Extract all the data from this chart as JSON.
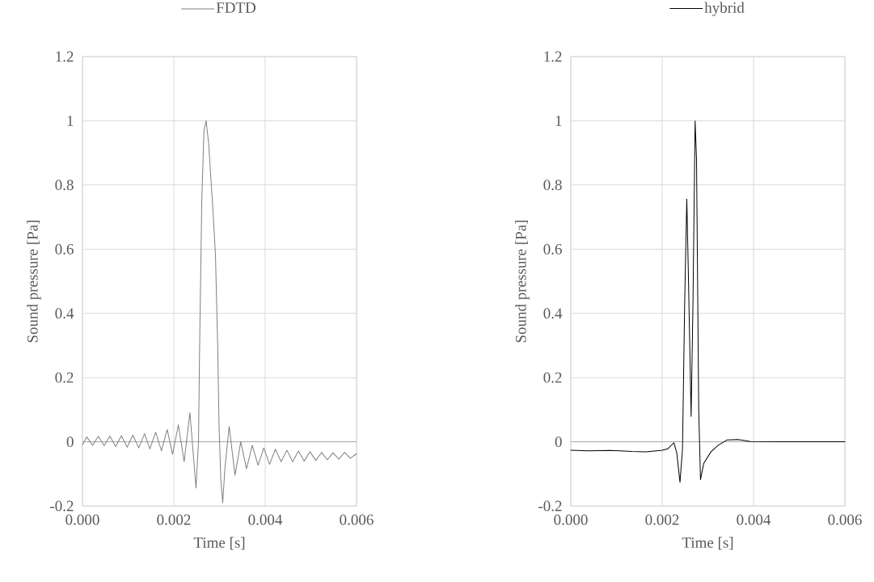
{
  "chart_data": [
    {
      "type": "line",
      "xlabel": "Time [s]",
      "ylabel": "Sound pressure [Pa]",
      "xlim": [
        0,
        0.006
      ],
      "ylim": [
        -0.2,
        1.2
      ],
      "xticks": [
        {
          "value": 0,
          "label": "0.000"
        },
        {
          "value": 0.002,
          "label": "0.002"
        },
        {
          "value": 0.004,
          "label": "0.004"
        },
        {
          "value": 0.006,
          "label": "0.006"
        }
      ],
      "yticks": [
        -0.2,
        0,
        0.2,
        0.4,
        0.6,
        0.8,
        1,
        1.2
      ],
      "grid": true,
      "legend": "top",
      "line_style": "solid",
      "marker": "none",
      "x": [
        0,
        9.5e-05,
        0.000221,
        0.000347,
        0.000474,
        0.0006,
        0.000726,
        0.000852,
        0.000979,
        0.001105,
        0.001231,
        0.001358,
        0.001476,
        0.001602,
        0.001729,
        0.001855,
        0.001973,
        0.002099,
        0.002226,
        0.002352,
        0.002486,
        0.00254,
        0.002565,
        0.002612,
        0.00266,
        0.002707,
        0.002762,
        0.002857,
        0.002912,
        0.00296,
        0.00299,
        0.00303,
        0.00307,
        0.00312,
        0.003212,
        0.003339,
        0.003465,
        0.003591,
        0.003717,
        0.003844,
        0.00397,
        0.004096,
        0.004223,
        0.004349,
        0.004475,
        0.004601,
        0.004728,
        0.004854,
        0.00498,
        0.005107,
        0.005233,
        0.005359,
        0.005485,
        0.005612,
        0.005738,
        0.005864,
        0.006
      ],
      "series": [
        {
          "name": "FDTD",
          "color": "#7f7f7f",
          "values": [
            -0.009,
            0.015,
            -0.011,
            0.017,
            -0.012,
            0.018,
            -0.015,
            0.019,
            -0.017,
            0.021,
            -0.019,
            0.025,
            -0.022,
            0.03,
            -0.028,
            0.038,
            -0.039,
            0.053,
            -0.062,
            0.091,
            -0.144,
            0.0,
            0.3,
            0.75,
            0.97,
            1.0,
            0.93,
            0.72,
            0.58,
            0.3,
            0.05,
            -0.12,
            -0.19,
            -0.08,
            0.048,
            -0.104,
            0.0,
            -0.084,
            -0.011,
            -0.073,
            -0.019,
            -0.07,
            -0.023,
            -0.062,
            -0.026,
            -0.062,
            -0.029,
            -0.06,
            -0.031,
            -0.058,
            -0.033,
            -0.056,
            -0.034,
            -0.054,
            -0.033,
            -0.051,
            -0.037
          ]
        }
      ]
    },
    {
      "type": "line",
      "xlabel": "Time [s]",
      "ylabel": "Sound pressure [Pa]",
      "xlim": [
        0,
        0.006
      ],
      "ylim": [
        -0.2,
        1.2
      ],
      "xticks": [
        {
          "value": 0,
          "label": "0.000"
        },
        {
          "value": 0.002,
          "label": "0.002"
        },
        {
          "value": 0.004,
          "label": "0.004"
        },
        {
          "value": 0.006,
          "label": "0.006"
        }
      ],
      "yticks": [
        -0.2,
        0,
        0.2,
        0.4,
        0.6,
        0.8,
        1,
        1.2
      ],
      "grid": true,
      "legend": "top",
      "line_style": "solid",
      "marker": "none",
      "x": [
        0,
        0.000386,
        0.00086,
        0.001333,
        0.001648,
        0.002003,
        0.002121,
        0.002256,
        0.002319,
        0.00239,
        0.002445,
        0.002492,
        0.002539,
        0.002571,
        0.002634,
        0.002674,
        0.002721,
        0.002752,
        0.0028,
        0.002839,
        0.00291,
        0.003068,
        0.003226,
        0.003423,
        0.003659,
        0.003935,
        0.004566,
        0.006
      ],
      "series": [
        {
          "name": "hybrid",
          "color": "#000000",
          "values": [
            -0.026,
            -0.028,
            -0.027,
            -0.03,
            -0.031,
            -0.026,
            -0.022,
            -0.003,
            -0.034,
            -0.126,
            -0.022,
            0.43,
            0.756,
            0.54,
            0.079,
            0.43,
            1.0,
            0.88,
            0.1,
            -0.118,
            -0.067,
            -0.031,
            -0.011,
            0.006,
            0.007,
            0.001,
            0.0,
            0.0
          ]
        }
      ]
    }
  ]
}
